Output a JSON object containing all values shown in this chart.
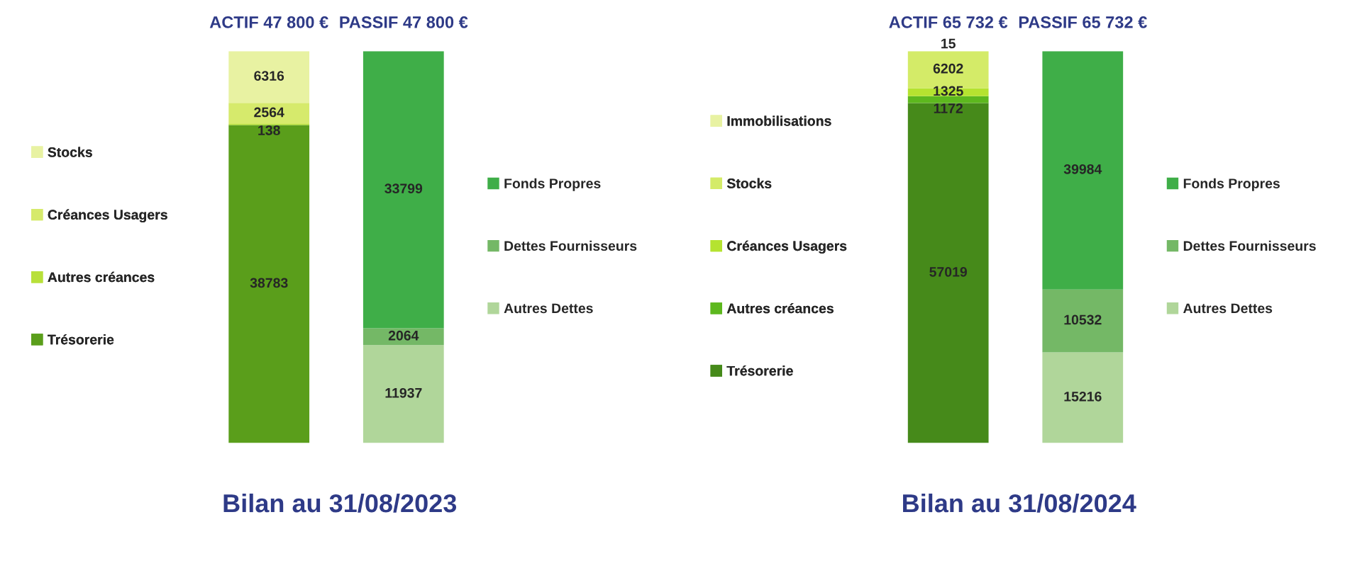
{
  "chart_data": [
    {
      "type": "bar",
      "stacked": true,
      "title": "Bilan au 31/08/2023",
      "categories": [
        "ACTIF 47 800 €",
        "PASSIF 47 800 €"
      ],
      "data_labels": true,
      "legend": "right",
      "tick_labels": "x",
      "series": [
        {
          "name": "Trésorerie",
          "color": "#5a9e1b",
          "values": [
            38783,
            null
          ]
        },
        {
          "name": "Autres créances",
          "color": "#b8e03a",
          "values": [
            138,
            null
          ]
        },
        {
          "name": "Créances Usagers",
          "color": "#d6ea6c",
          "values": [
            2564,
            null
          ]
        },
        {
          "name": "Stocks",
          "color": "#e8f2a2",
          "values": [
            6316,
            null
          ]
        },
        {
          "name": "Autres Dettes",
          "color": "#b0d69a",
          "values": [
            null,
            11937
          ]
        },
        {
          "name": "Dettes Fournisseurs",
          "color": "#74b866",
          "values": [
            null,
            2064
          ]
        },
        {
          "name": "Fonds Propres",
          "color": "#3fae48",
          "values": [
            null,
            33799
          ]
        }
      ]
    },
    {
      "type": "bar",
      "stacked": true,
      "title": "Bilan au 31/08/2024",
      "categories": [
        "ACTIF 65 732 €",
        "PASSIF 65 732 €"
      ],
      "data_labels": true,
      "legend": "right",
      "tick_labels": "x",
      "series": [
        {
          "name": "Trésorerie",
          "color": "#468a1a",
          "values": [
            57019,
            null
          ]
        },
        {
          "name": "Autres créances",
          "color": "#5db81e",
          "values": [
            1172,
            null
          ]
        },
        {
          "name": "Créances Usagers",
          "color": "#b5e330",
          "values": [
            1325,
            null
          ]
        },
        {
          "name": "Stocks",
          "color": "#d4eb68",
          "values": [
            6202,
            null
          ]
        },
        {
          "name": "Immobilisations",
          "color": "#e8f2a2",
          "values": [
            15,
            null
          ]
        },
        {
          "name": "Autres Dettes",
          "color": "#b0d69a",
          "values": [
            null,
            15216
          ]
        },
        {
          "name": "Dettes Fournisseurs",
          "color": "#74b866",
          "values": [
            null,
            10532
          ]
        },
        {
          "name": "Fonds Propres",
          "color": "#3fae48",
          "values": [
            null,
            39984
          ]
        }
      ]
    }
  ]
}
